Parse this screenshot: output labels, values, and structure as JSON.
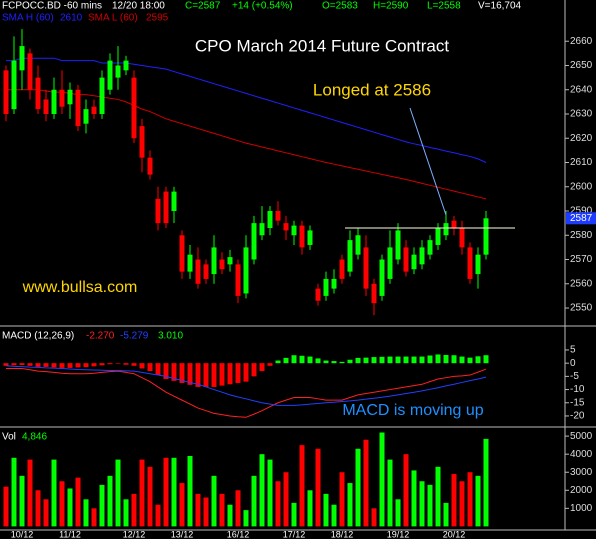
{
  "header": {
    "symbol": "FCPOCC.BD -60 mins",
    "time": "12/20 18:00",
    "close": "C=2587",
    "change": "+14 (+0.54%)",
    "open": "O=2583",
    "high": "H=2590",
    "low": "L=2558",
    "volume": "V=16,704"
  },
  "chart_data": [
    {
      "type": "candlestick",
      "title": "CPO March 2014 Future Contract",
      "annotation": "Longed at 2586",
      "watermark": "www.bullsa.com",
      "up_color": "#00ff00",
      "down_color": "#ff0000",
      "open": [
        2648,
        2632,
        2648,
        2655,
        2645,
        2636,
        2630,
        2640,
        2634,
        2640,
        2626,
        2633,
        2630,
        2640,
        2645,
        2648,
        2645,
        2625,
        2612,
        2595,
        2598,
        2590,
        2580,
        2565,
        2570,
        2568,
        2564,
        2570,
        2568,
        2568,
        2556,
        2570,
        2580,
        2583,
        2590,
        2585,
        2580,
        2584,
        2576,
        2558,
        2555,
        2558,
        2570,
        2565,
        2572,
        2575,
        2560,
        2555,
        2562,
        2570,
        2575,
        2566,
        2568,
        2572,
        2576,
        2580,
        2586,
        2583,
        2575,
        2564,
        2572
      ],
      "high": [
        2650,
        2662,
        2665,
        2657,
        2650,
        2640,
        2645,
        2648,
        2643,
        2642,
        2636,
        2636,
        2648,
        2655,
        2658,
        2654,
        2648,
        2628,
        2615,
        2600,
        2600,
        2600,
        2582,
        2576,
        2575,
        2570,
        2580,
        2573,
        2574,
        2570,
        2580,
        2588,
        2592,
        2592,
        2594,
        2588,
        2586,
        2586,
        2584,
        2560,
        2565,
        2566,
        2572,
        2582,
        2583,
        2580,
        2562,
        2572,
        2582,
        2585,
        2578,
        2575,
        2578,
        2580,
        2585,
        2590,
        2588,
        2586,
        2577,
        2575,
        2590
      ],
      "low": [
        2627,
        2630,
        2640,
        2636,
        2630,
        2627,
        2628,
        2630,
        2628,
        2623,
        2622,
        2628,
        2628,
        2638,
        2640,
        2646,
        2618,
        2606,
        2603,
        2582,
        2583,
        2585,
        2562,
        2562,
        2558,
        2560,
        2560,
        2564,
        2565,
        2552,
        2554,
        2568,
        2578,
        2580,
        2584,
        2578,
        2576,
        2572,
        2574,
        2551,
        2553,
        2556,
        2560,
        2563,
        2570,
        2555,
        2547,
        2553,
        2560,
        2568,
        2563,
        2564,
        2566,
        2570,
        2574,
        2578,
        2580,
        2572,
        2560,
        2558,
        2570
      ],
      "close": [
        2630,
        2652,
        2658,
        2640,
        2632,
        2630,
        2640,
        2633,
        2640,
        2625,
        2632,
        2630,
        2645,
        2652,
        2650,
        2652,
        2620,
        2612,
        2605,
        2585,
        2585,
        2598,
        2565,
        2572,
        2560,
        2562,
        2575,
        2566,
        2571,
        2555,
        2575,
        2585,
        2585,
        2590,
        2586,
        2582,
        2584,
        2575,
        2582,
        2553,
        2562,
        2562,
        2562,
        2578,
        2580,
        2558,
        2552,
        2570,
        2575,
        2582,
        2565,
        2572,
        2575,
        2578,
        2583,
        2585,
        2583,
        2575,
        2562,
        2572,
        2587
      ],
      "series": [
        {
          "name": "SMA H (60)",
          "color": "#2020ff",
          "values": [
            2652,
            2652,
            2653,
            2653,
            2653,
            2653,
            2653,
            2652,
            2652,
            2652,
            2652,
            2652,
            2651,
            2651,
            2651,
            2651,
            2650.5,
            2650,
            2649.5,
            2649,
            2648.5,
            2647.5,
            2646.5,
            2645.5,
            2644.5,
            2643.5,
            2642.5,
            2641.5,
            2640.5,
            2639.5,
            2638.5,
            2637.5,
            2636.5,
            2635.5,
            2634.5,
            2633.5,
            2632.5,
            2631.5,
            2630.5,
            2629.5,
            2628.5,
            2627.5,
            2626.5,
            2625.5,
            2624.5,
            2623.5,
            2622.5,
            2621.5,
            2620.5,
            2619.5,
            2618.5,
            2617.7,
            2617,
            2616.2,
            2615.5,
            2614.7,
            2614,
            2613.2,
            2612.5,
            2611.5,
            2610
          ]
        },
        {
          "name": "SMA L (60)",
          "color": "#d00000",
          "values": [
            2640,
            2640,
            2640,
            2640,
            2640,
            2639.5,
            2639,
            2639,
            2638.5,
            2638,
            2638,
            2637.5,
            2637,
            2636.5,
            2636,
            2635,
            2633.5,
            2632,
            2631,
            2629.5,
            2628,
            2627,
            2626,
            2625,
            2624,
            2623,
            2622,
            2621,
            2620,
            2619,
            2618,
            2617.2,
            2616.4,
            2615.6,
            2614.8,
            2614,
            2613.2,
            2612.4,
            2611.6,
            2610.8,
            2610,
            2609.3,
            2608.6,
            2607.9,
            2607.2,
            2606.5,
            2605.8,
            2605.1,
            2604.4,
            2603.7,
            2603,
            2602.2,
            2601.4,
            2600.6,
            2599.8,
            2599,
            2598.2,
            2597.4,
            2596.6,
            2595.8,
            2595
          ]
        }
      ],
      "hline": 2583,
      "hline_color": "#ffffe0",
      "ylim": [
        2543,
        2677
      ],
      "yticks": [
        2550,
        2560,
        2570,
        2580,
        2590,
        2600,
        2610,
        2620,
        2630,
        2640,
        2650,
        2660
      ]
    },
    {
      "type": "macd",
      "title": "MACD (12,26,9)",
      "annotation": "MACD is moving up",
      "series": [
        {
          "color": "#ff2020",
          "last_label": "-2.270",
          "values": [
            -2,
            -2,
            -2,
            -2.5,
            -3,
            -3.2,
            -3.5,
            -3.8,
            -4,
            -4,
            -4,
            -3.8,
            -3.5,
            -3.2,
            -3,
            -3.5,
            -4,
            -5.5,
            -7,
            -9,
            -11,
            -12.5,
            -14,
            -15.5,
            -17,
            -18,
            -19,
            -19.5,
            -20,
            -20.3,
            -20.5,
            -19.3,
            -18,
            -16.5,
            -15,
            -14,
            -13,
            -13,
            -13,
            -13.5,
            -14,
            -14,
            -14,
            -13,
            -12,
            -11.5,
            -11,
            -10.5,
            -10,
            -9.5,
            -9,
            -8.5,
            -8,
            -7,
            -6,
            -5.5,
            -5,
            -4.8,
            -4.5,
            -3.4,
            -2.27
          ]
        },
        {
          "color": "#2040ff",
          "last_label": "-5.279",
          "values": [
            -1,
            -1.2,
            -1.3,
            -1.5,
            -1.6,
            -1.8,
            -1.9,
            -2,
            -2.2,
            -2.4,
            -2.5,
            -2.6,
            -2.7,
            -2.8,
            -2.8,
            -2.9,
            -3,
            -3.5,
            -4,
            -4.5,
            -5,
            -5.8,
            -6.5,
            -7.3,
            -8,
            -9,
            -10,
            -11,
            -12,
            -12.8,
            -13.5,
            -14.3,
            -15,
            -15.5,
            -16,
            -16,
            -16,
            -15.8,
            -15.5,
            -15.3,
            -15,
            -14.8,
            -14.5,
            -14.3,
            -14,
            -13.6,
            -13.3,
            -12.9,
            -12.5,
            -12,
            -11.5,
            -11,
            -10.5,
            -9.9,
            -9.3,
            -8.6,
            -8,
            -7.3,
            -6.6,
            -6,
            -5.279
          ]
        }
      ],
      "histogram": {
        "up_color": "#00ff00",
        "down_color": "#ff0000",
        "last_label": "3.010",
        "values": [
          -1,
          -0.8,
          -0.7,
          -1,
          -1.4,
          -1.4,
          -1.6,
          -1.8,
          -1.8,
          -1.6,
          -1.5,
          -1.2,
          -0.8,
          -0.4,
          -0.2,
          -0.6,
          -1,
          -2,
          -3,
          -4.5,
          -6,
          -6.7,
          -7.5,
          -8.2,
          -9,
          -9,
          -9,
          -8.5,
          -8,
          -7.5,
          -7,
          -5,
          -3,
          -1,
          1,
          2,
          3,
          2.8,
          2.5,
          1.8,
          1,
          0.8,
          0.5,
          1.3,
          2,
          2.1,
          2.3,
          2.4,
          2.5,
          2.5,
          2.5,
          2.5,
          2.5,
          2.9,
          3.3,
          3.1,
          3,
          2.5,
          2.1,
          2.6,
          3.01
        ]
      },
      "ylim": [
        -23.8,
        13.7
      ],
      "yticks": [
        5,
        0,
        -5,
        -10,
        -15,
        -20
      ]
    },
    {
      "type": "volume",
      "title": "Vol",
      "last_label": "4,846",
      "up_color": "#00ff00",
      "down_color": "#ff0000",
      "values": [
        2200,
        3800,
        2800,
        3700,
        2000,
        1500,
        3700,
        2500,
        2100,
        2700,
        1500,
        1000,
        2300,
        2800,
        3700,
        1500,
        1800,
        3700,
        3300,
        1200,
        3800,
        3800,
        2400,
        3900,
        1800,
        1600,
        2800,
        1800,
        1200,
        2000,
        900,
        2800,
        4000,
        3700,
        2500,
        3000,
        1300,
        4500,
        2000,
        4300,
        1800,
        1200,
        3000,
        2400,
        4300,
        4800,
        1000,
        5200,
        3700,
        1500,
        4000,
        3100,
        2500,
        2300,
        3300,
        1300,
        2900,
        2500,
        3000,
        2800,
        4846
      ],
      "categories": [
        null,
        null,
        "10/12",
        null,
        null,
        null,
        null,
        null,
        "11/12",
        null,
        null,
        null,
        null,
        null,
        null,
        null,
        "12/12",
        null,
        null,
        null,
        null,
        null,
        "13/12",
        null,
        null,
        null,
        null,
        null,
        null,
        "16/12",
        null,
        null,
        null,
        null,
        null,
        null,
        "17/12",
        null,
        null,
        null,
        null,
        null,
        "18/12",
        null,
        null,
        null,
        null,
        null,
        null,
        "19/12",
        null,
        null,
        null,
        null,
        null,
        null,
        "20/12",
        null,
        null,
        null,
        null
      ],
      "ylim": [
        -200,
        5450
      ],
      "yticks": [
        1000,
        2000,
        3000,
        4000,
        5000
      ]
    }
  ]
}
